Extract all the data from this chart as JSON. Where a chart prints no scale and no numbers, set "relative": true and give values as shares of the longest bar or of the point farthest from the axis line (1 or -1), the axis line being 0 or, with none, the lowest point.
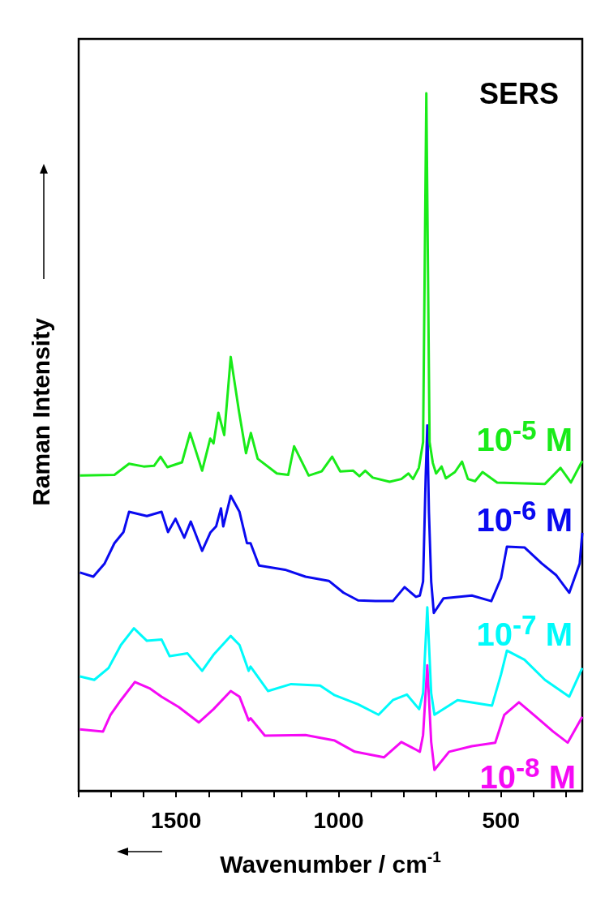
{
  "chart_data": {
    "type": "line",
    "title": "SERS",
    "xlabel": "Wavenumber / cm$^{-1}$",
    "ylabel": "Raman Intensity",
    "relative": true,
    "xlim": [
      1800,
      250
    ],
    "xticks": [
      {
        "value": 1800,
        "label": null
      },
      {
        "value": 1700,
        "label": null
      },
      {
        "value": 1600,
        "label": null
      },
      1500,
      {
        "value": 1400,
        "label": null
      },
      {
        "value": 1300,
        "label": null
      },
      {
        "value": 1200,
        "label": null
      },
      {
        "value": 1100,
        "label": null
      },
      1000,
      {
        "value": 900,
        "label": null
      },
      {
        "value": 800,
        "label": null
      },
      {
        "value": 700,
        "label": null
      },
      {
        "value": 600,
        "label": null
      },
      500,
      {
        "value": 400,
        "label": null
      },
      {
        "value": 300,
        "label": null
      }
    ],
    "series": [
      {
        "name": "10$^{-5}$ M",
        "color": "#19eb19",
        "x": [
          1796,
          1690,
          1645,
          1600,
          1568,
          1548,
          1527,
          1482,
          1457,
          1420,
          1395,
          1385,
          1370,
          1352,
          1332,
          1307,
          1285,
          1270,
          1249,
          1190,
          1155,
          1137,
          1092,
          1052,
          1020,
          995,
          955,
          936,
          918,
          895,
          843,
          807,
          785,
          771,
          753,
          740,
          730,
          720,
          710,
          700,
          683,
          670,
          642,
          620,
          602,
          580,
          557,
          512,
          365,
          317,
          285,
          250
        ],
        "values": [
          0.452,
          0.453,
          0.469,
          0.465,
          0.466,
          0.479,
          0.464,
          0.471,
          0.513,
          0.459,
          0.505,
          0.498,
          0.542,
          0.51,
          0.622,
          0.545,
          0.484,
          0.513,
          0.476,
          0.455,
          0.453,
          0.494,
          0.452,
          0.458,
          0.479,
          0.458,
          0.459,
          0.451,
          0.459,
          0.449,
          0.443,
          0.447,
          0.455,
          0.447,
          0.463,
          0.5,
          1.0,
          0.5,
          0.47,
          0.455,
          0.465,
          0.448,
          0.457,
          0.472,
          0.447,
          0.444,
          0.457,
          0.442,
          0.44,
          0.463,
          0.442,
          0.473
        ]
      },
      {
        "name": "10$^{-6}$ M",
        "color": "#0a0af0",
        "x": [
          1796,
          1755,
          1720,
          1690,
          1662,
          1645,
          1590,
          1545,
          1525,
          1502,
          1475,
          1455,
          1420,
          1395,
          1377,
          1362,
          1355,
          1332,
          1305,
          1282,
          1271,
          1245,
          1165,
          1102,
          1030,
          985,
          940,
          887,
          833,
          797,
          762,
          750,
          740,
          732,
          727,
          722,
          715,
          707,
          677,
          590,
          530,
          500,
          482,
          428,
          375,
          330,
          290,
          258,
          250
        ],
        "values": [
          0.313,
          0.307,
          0.326,
          0.355,
          0.371,
          0.4,
          0.394,
          0.4,
          0.371,
          0.39,
          0.363,
          0.386,
          0.344,
          0.37,
          0.379,
          0.405,
          0.379,
          0.423,
          0.4,
          0.355,
          0.355,
          0.323,
          0.317,
          0.307,
          0.301,
          0.284,
          0.273,
          0.272,
          0.272,
          0.292,
          0.278,
          0.28,
          0.3,
          0.45,
          0.524,
          0.4,
          0.3,
          0.255,
          0.276,
          0.28,
          0.272,
          0.305,
          0.35,
          0.349,
          0.326,
          0.309,
          0.284,
          0.326,
          0.37
        ]
      },
      {
        "name": "10$^{-7}$ M",
        "color": "#00fafa",
        "x": [
          1796,
          1752,
          1708,
          1670,
          1630,
          1590,
          1545,
          1520,
          1465,
          1420,
          1385,
          1332,
          1305,
          1277,
          1271,
          1217,
          1146,
          1057,
          1012,
          940,
          877,
          833,
          790,
          752,
          740,
          727,
          715,
          705,
          634,
          528,
          500,
          482,
          428,
          365,
          290,
          250
        ],
        "values": [
          0.164,
          0.159,
          0.176,
          0.209,
          0.233,
          0.215,
          0.217,
          0.193,
          0.197,
          0.172,
          0.195,
          0.222,
          0.209,
          0.172,
          0.178,
          0.143,
          0.153,
          0.151,
          0.137,
          0.124,
          0.109,
          0.13,
          0.138,
          0.117,
          0.14,
          0.263,
          0.14,
          0.109,
          0.13,
          0.122,
          0.167,
          0.201,
          0.188,
          0.159,
          0.135,
          0.176
        ]
      },
      {
        "name": "10$^{-8}$ M",
        "color": "#f50af5",
        "x": [
          1796,
          1725,
          1702,
          1670,
          1627,
          1582,
          1545,
          1492,
          1430,
          1385,
          1332,
          1305,
          1277,
          1271,
          1227,
          1102,
          1012,
          950,
          860,
          807,
          762,
          750,
          740,
          727,
          715,
          705,
          660,
          590,
          518,
          490,
          445,
          392,
          340,
          295,
          250
        ],
        "values": [
          0.088,
          0.085,
          0.109,
          0.13,
          0.156,
          0.147,
          0.135,
          0.12,
          0.098,
          0.117,
          0.143,
          0.135,
          0.101,
          0.104,
          0.079,
          0.08,
          0.072,
          0.056,
          0.048,
          0.07,
          0.059,
          0.056,
          0.08,
          0.18,
          0.07,
          0.03,
          0.056,
          0.064,
          0.069,
          0.109,
          0.127,
          0.106,
          0.085,
          0.069,
          0.106
        ]
      }
    ]
  }
}
